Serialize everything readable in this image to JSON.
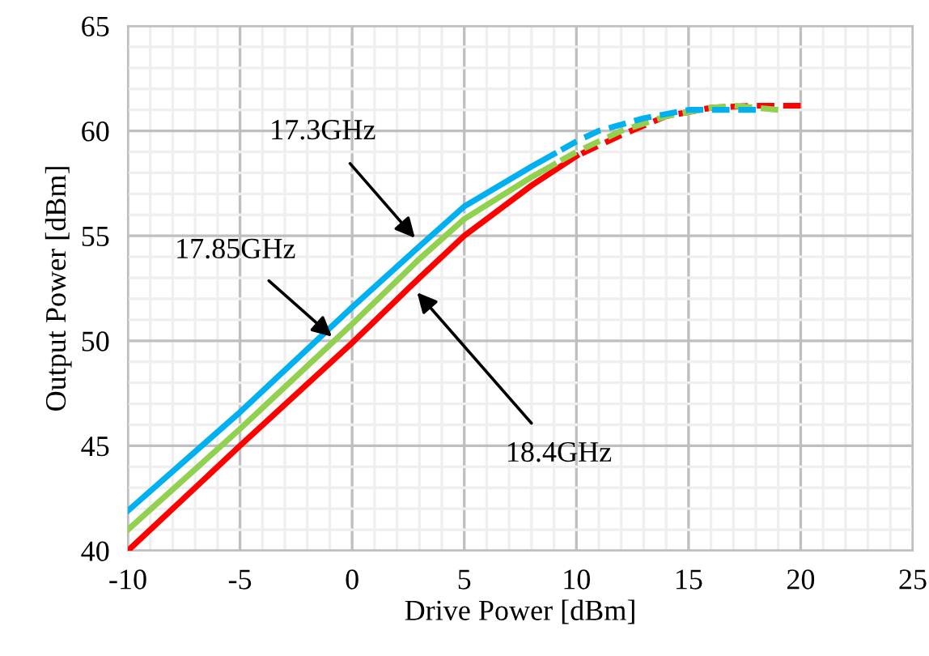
{
  "chart_data": {
    "type": "line",
    "xlabel": "Drive Power [dBm]",
    "ylabel": "Output Power [dBm]",
    "xlim": [
      -10,
      25
    ],
    "xticks": [
      -10,
      -5,
      0,
      5,
      10,
      15,
      20,
      25
    ],
    "ylim": [
      40,
      65
    ],
    "yticks": [
      40,
      45,
      50,
      55,
      60,
      65
    ],
    "grid": true,
    "marker": "none",
    "series": [
      {
        "color": "#00b0f0",
        "line_style": "solid",
        "x": [
          -10,
          -5,
          0,
          3,
          5,
          8,
          9
        ],
        "values": [
          41.9,
          46.6,
          51.6,
          54.5,
          56.4,
          58.3,
          58.9
        ]
      },
      {
        "color": "#00b0f0",
        "line_style": "dashed",
        "x": [
          9,
          10,
          11,
          13,
          15,
          17,
          18
        ],
        "values": [
          58.9,
          59.5,
          60.0,
          60.6,
          61.0,
          61.0,
          61.0
        ]
      },
      {
        "color": "#92d050",
        "line_style": "solid",
        "x": [
          -10,
          -5,
          0,
          3,
          5,
          8,
          9
        ],
        "values": [
          41.0,
          45.8,
          50.8,
          53.9,
          55.8,
          57.8,
          58.4
        ]
      },
      {
        "color": "#92d050",
        "line_style": "dashed",
        "x": [
          9,
          10,
          12,
          14,
          16,
          17,
          19
        ],
        "values": [
          58.4,
          59.0,
          60.0,
          60.7,
          61.1,
          61.2,
          61.0
        ]
      },
      {
        "color": "#ff0000",
        "line_style": "solid",
        "x": [
          -10,
          -5,
          0,
          3,
          5,
          8,
          10
        ],
        "values": [
          40.0,
          45.0,
          49.9,
          53.0,
          55.0,
          57.4,
          58.8
        ]
      },
      {
        "color": "#ff0000",
        "line_style": "dashed",
        "x": [
          10,
          12,
          14,
          16,
          18,
          20
        ],
        "values": [
          58.8,
          59.8,
          60.7,
          61.1,
          61.2,
          61.2
        ]
      }
    ],
    "annotations": [
      {
        "text": "17.3GHz",
        "x": 2.8,
        "y": 54.9
      },
      {
        "text": "17.85GHz",
        "x": -0.9,
        "y": 50.2
      },
      {
        "text": "18.4GHz",
        "x": 2.9,
        "y": 52.3
      }
    ]
  }
}
